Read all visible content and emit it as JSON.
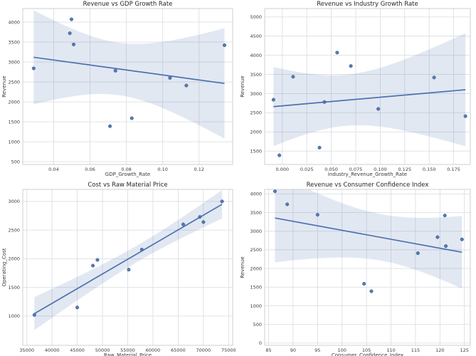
{
  "figure": {
    "background": "#ffffff",
    "accent": "#4c72b0",
    "point_edge": "#3d5c91",
    "band_opacity": 0.16,
    "grid_color": "#dcdfe3",
    "spine_color": "#cfcfcf",
    "text_color": "#3b3b3b",
    "title_color": "#262626"
  },
  "chart_data": [
    {
      "type": "scatter",
      "regression": true,
      "ci": 95,
      "title": "Revenue vs GDP Growth Rate",
      "xlabel": "GDP_Growth_Rate",
      "ylabel": "Revenue",
      "x": [
        0.029,
        0.0489,
        0.0498,
        0.051,
        0.071,
        0.074,
        0.083,
        0.104,
        0.113,
        0.134
      ],
      "y": [
        2840,
        3720,
        4070,
        3440,
        1390,
        2780,
        1590,
        2600,
        2410,
        3420
      ],
      "xlim": [
        0.023,
        0.1385
      ],
      "ylim": [
        430,
        4340
      ],
      "xticks": [
        0.04,
        0.06,
        0.08,
        0.1,
        0.12
      ],
      "xtick_decimals": 2,
      "yticks": [
        500,
        1000,
        1500,
        2000,
        2500,
        3000,
        3500,
        4000
      ]
    },
    {
      "type": "scatter",
      "regression": true,
      "ci": 95,
      "title": "Revenue vs Industry Growth Rate",
      "xlabel": "Industry_Revenue_Growth_Rate",
      "ylabel": "Revenue",
      "x": [
        -0.009,
        -0.003,
        0.011,
        0.038,
        0.043,
        0.056,
        0.07,
        0.098,
        0.155,
        0.187
      ],
      "y": [
        2840,
        1390,
        3440,
        1590,
        2780,
        4070,
        3720,
        2600,
        3420,
        2410
      ],
      "xlim": [
        -0.018,
        0.192
      ],
      "ylim": [
        1150,
        5220
      ],
      "xticks": [
        0,
        0.025,
        0.05,
        0.075,
        0.1,
        0.125,
        0.15,
        0.175
      ],
      "xtick_decimals": 3,
      "yticks": [
        1500,
        2000,
        2500,
        3000,
        3500,
        4000,
        4500,
        5000
      ]
    },
    {
      "type": "scatter",
      "regression": true,
      "ci": 95,
      "title": "Cost vs Raw Material Price",
      "xlabel": "Raw_Material_Price",
      "ylabel": "Operating_Cost",
      "x": [
        36500,
        45000,
        48100,
        49000,
        55200,
        57800,
        66000,
        69300,
        70000,
        73700
      ],
      "y": [
        1020,
        1150,
        1880,
        1980,
        1810,
        2160,
        2600,
        2730,
        2640,
        3000
      ],
      "xlim": [
        34200,
        75800
      ],
      "ylim": [
        490,
        3210
      ],
      "xticks": [
        35000,
        40000,
        45000,
        50000,
        55000,
        60000,
        65000,
        70000,
        75000
      ],
      "xtick_decimals": 0,
      "yticks": [
        1000,
        1500,
        2000,
        2500,
        3000
      ]
    },
    {
      "type": "scatter",
      "regression": true,
      "ci": 95,
      "title": "Revenue vs Consumer Confidence Index",
      "xlabel": "Consumer_Confidence_Index",
      "ylabel": "Revenue",
      "x": [
        86.3,
        88.8,
        95.0,
        104.5,
        106.0,
        115.5,
        119.5,
        121.0,
        121.2,
        124.5
      ],
      "y": [
        4070,
        3720,
        3440,
        1590,
        1390,
        2410,
        2840,
        3420,
        2600,
        2780
      ],
      "xlim": [
        84.2,
        126.2
      ],
      "ylim": [
        -60,
        4120
      ],
      "xticks": [
        85,
        90,
        95,
        100,
        105,
        110,
        115,
        120,
        125
      ],
      "xtick_decimals": 0,
      "yticks": [
        0,
        500,
        1000,
        1500,
        2000,
        2500,
        3000,
        3500,
        4000
      ]
    }
  ]
}
